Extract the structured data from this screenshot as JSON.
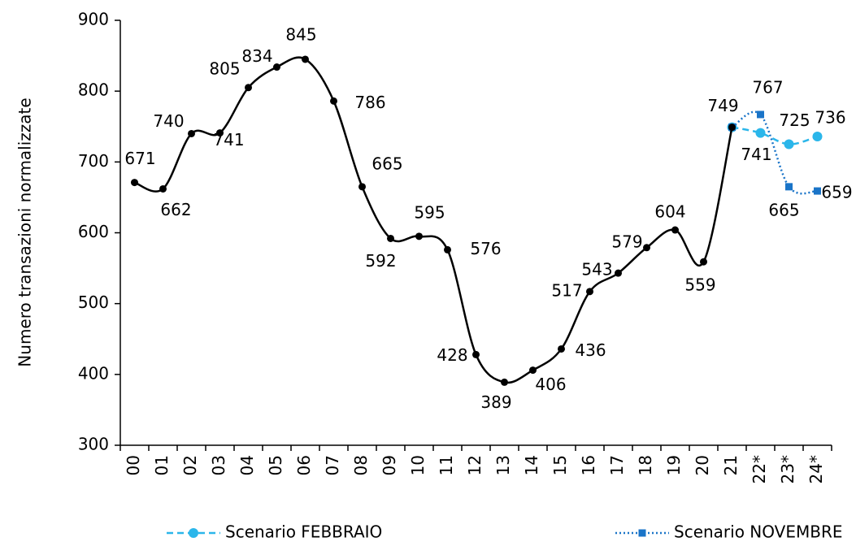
{
  "chart_data": {
    "type": "line",
    "y_label": "Numero transazioni normalizzate",
    "categories": [
      "00",
      "01",
      "02",
      "03",
      "04",
      "05",
      "06",
      "07",
      "08",
      "09",
      "10",
      "11",
      "12",
      "13",
      "14",
      "15",
      "16",
      "17",
      "18",
      "19",
      "20",
      "21",
      "22*",
      "23*",
      "24*"
    ],
    "series": [
      {
        "color": "#000000",
        "values": [
          671,
          662,
          740,
          741,
          805,
          834,
          845,
          786,
          665,
          592,
          595,
          576,
          428,
          389,
          406,
          436,
          517,
          543,
          579,
          604,
          559,
          749,
          null,
          null,
          null
        ]
      },
      {
        "name": "Scenario FEBBRAIO",
        "color": "#2bb6ea",
        "values": [
          null,
          null,
          null,
          null,
          null,
          null,
          null,
          null,
          null,
          null,
          null,
          null,
          null,
          null,
          null,
          null,
          null,
          null,
          null,
          null,
          null,
          749,
          741,
          725,
          736
        ]
      },
      {
        "name": "Scenario NOVEMBRE",
        "color": "#1a74c8",
        "values": [
          null,
          null,
          null,
          null,
          null,
          null,
          null,
          null,
          null,
          null,
          null,
          null,
          null,
          null,
          null,
          null,
          null,
          null,
          null,
          null,
          null,
          749,
          767,
          665,
          659
        ]
      }
    ],
    "ylim": [
      300,
      900
    ],
    "yticks": [
      300,
      400,
      500,
      600,
      700,
      800,
      900
    ]
  }
}
